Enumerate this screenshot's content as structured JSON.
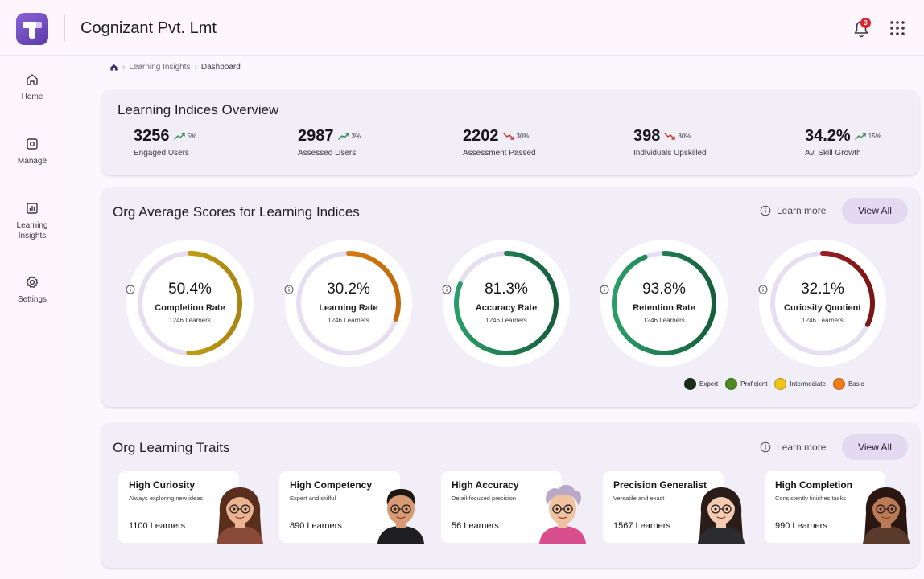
{
  "header": {
    "company": "Cognizant Pvt. Lmt",
    "notification_count": "3",
    "logo_letter": "T"
  },
  "sidebar": {
    "items": [
      {
        "label": "Home",
        "icon": "home-icon"
      },
      {
        "label": "Manage",
        "icon": "manage-icon"
      },
      {
        "label": "Learning Insights",
        "icon": "insights-icon"
      },
      {
        "label": "Settings",
        "icon": "gear-icon"
      }
    ]
  },
  "breadcrumb": {
    "items": [
      "Learning Insights",
      "Dashboard"
    ]
  },
  "overview": {
    "title": "Learning Indices Overview",
    "stats": [
      {
        "value": "3256",
        "change": "5%",
        "trend": "up",
        "label": "Engaged Users"
      },
      {
        "value": "2987",
        "change": "3%",
        "trend": "up",
        "label": "Assessed Users"
      },
      {
        "value": "2202",
        "change": "30%",
        "trend": "down",
        "label": "Assessment Passed"
      },
      {
        "value": "398",
        "change": "30%",
        "trend": "down",
        "label": "Individuals Upskilled"
      },
      {
        "value": "34.2%",
        "change": "15%",
        "trend": "up",
        "label": "Av. Skill Growth"
      }
    ]
  },
  "scores": {
    "title": "Org Average Scores for Learning Indices",
    "learn_more": "Learn more",
    "view_all": "View All",
    "gauges": [
      {
        "value": "50.4%",
        "fraction": 0.504,
        "name": "Completion Rate",
        "learners": "1246 Learners",
        "color": "#d9b418",
        "color2": "#a88510"
      },
      {
        "value": "30.2%",
        "fraction": 0.302,
        "name": "Learning Rate",
        "learners": "1246 Learners",
        "color": "#e98a18",
        "color2": "#c06a0c"
      },
      {
        "value": "81.3%",
        "fraction": 0.813,
        "name": "Accuracy Rate",
        "learners": "1246 Learners",
        "color": "#2a9d68",
        "color2": "#155e3c"
      },
      {
        "value": "93.8%",
        "fraction": 0.938,
        "name": "Retention Rate",
        "learners": "1246 Learners",
        "color": "#2a9d68",
        "color2": "#155e3c"
      },
      {
        "value": "32.1%",
        "fraction": 0.321,
        "name": "Curiosity Quotient",
        "learners": "1246 Learners",
        "color": "#b2292a",
        "color2": "#7a1617"
      }
    ],
    "legend": [
      {
        "label": "Expert",
        "color": "#1a2e1a"
      },
      {
        "label": "Proficient",
        "color": "#4f8a24"
      },
      {
        "label": "Intermediate",
        "color": "#f0c419"
      },
      {
        "label": "Basic",
        "color": "#ef7e1a"
      }
    ]
  },
  "traits": {
    "title": "Org Learning Traits",
    "learn_more": "Learn more",
    "view_all": "View All",
    "items": [
      {
        "title": "High Curiosity",
        "desc": "Always exploring new ideas",
        "count": "1100 Learners",
        "hair": "#5a2e1c",
        "skin": "#e9b48f",
        "shirt": "#8a4a3a"
      },
      {
        "title": "High Competency",
        "desc": "Expert and skilful",
        "count": "890 Learners",
        "hair": "#1e1712",
        "skin": "#d79a72",
        "shirt": "#1d1d22"
      },
      {
        "title": "High Accuracy",
        "desc": "Detail-focused precision",
        "count": "56 Learners",
        "hair": "#b9a9c8",
        "skin": "#f0c29f",
        "shirt": "#d94f8e"
      },
      {
        "title": "Precision Generalist",
        "desc": "Versatile and exact",
        "count": "1567 Learners",
        "hair": "#2a1d18",
        "skin": "#f2cbb0",
        "shirt": "#2b2b30"
      },
      {
        "title": "High Completion",
        "desc": "Consistently finishes tasks",
        "count": "990 Learners",
        "hair": "#2a1712",
        "skin": "#b97a55",
        "shirt": "#5a3a2a"
      }
    ]
  }
}
